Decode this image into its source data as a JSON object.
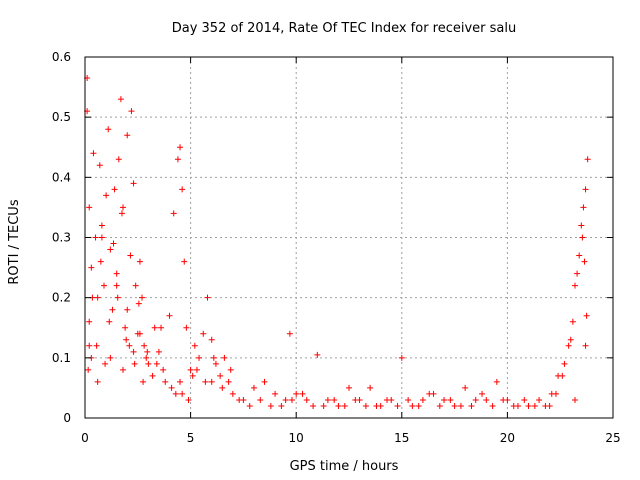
{
  "chart_data": {
    "type": "scatter",
    "title": "Day 352 of 2014, Rate Of TEC Index for receiver salu",
    "xlabel": "GPS time / hours",
    "ylabel": "ROTI / TECUs",
    "xlim": [
      0,
      25
    ],
    "ylim": [
      0,
      0.6
    ],
    "xticks": [
      0,
      5,
      10,
      15,
      20,
      25
    ],
    "yticks": [
      0,
      0.1,
      0.2,
      0.3,
      0.4,
      0.5,
      0.6
    ],
    "xtick_labels": [
      "0",
      "5",
      "10",
      "15",
      "20",
      "25"
    ],
    "ytick_labels": [
      "0",
      "0.1",
      "0.2",
      "0.3",
      "0.4",
      "0.5",
      "0.6"
    ],
    "grid": true,
    "marker": "+",
    "series_color": "#ff0000",
    "series": [
      {
        "name": "ROTI",
        "x": [
          0.1,
          0.1,
          0.2,
          0.2,
          0.3,
          0.4,
          0.5,
          0.6,
          0.7,
          0.8,
          0.9,
          1.0,
          1.1,
          1.2,
          1.3,
          1.4,
          1.5,
          1.6,
          1.7,
          1.8,
          1.9,
          2.0,
          2.1,
          2.2,
          2.3,
          2.4,
          2.5,
          2.6,
          2.7,
          2.8,
          2.9,
          3.0,
          3.2,
          3.4,
          3.6,
          3.8,
          4.0,
          4.2,
          4.4,
          4.5,
          4.6,
          4.7,
          4.8,
          5.0,
          5.2,
          5.4,
          5.6,
          5.8,
          6.0,
          6.2,
          6.4,
          6.6,
          6.8,
          7.0,
          7.5,
          8.0,
          8.5,
          9.0,
          9.5,
          9.7,
          10.0,
          10.5,
          11.0,
          11.5,
          12.0,
          12.5,
          13.0,
          13.5,
          14.0,
          14.5,
          15.0,
          15.5,
          16.0,
          16.5,
          17.0,
          17.5,
          18.0,
          18.5,
          19.0,
          19.5,
          20.0,
          20.5,
          21.0,
          21.5,
          22.0,
          22.3,
          22.6,
          22.9,
          23.1,
          23.3,
          23.5,
          23.6,
          23.7,
          23.8,
          0.2,
          0.6,
          1.2,
          1.8,
          2.3,
          4.5,
          4.6,
          23.7,
          0.3,
          0.8,
          1.5,
          2.0,
          2.6,
          3.5,
          5.1,
          6.0,
          23.2,
          0.15,
          0.35,
          0.55,
          0.75,
          0.95,
          1.15,
          1.35,
          1.55,
          1.75,
          1.95,
          2.15,
          2.35,
          2.55,
          2.75,
          2.95,
          3.3,
          3.7,
          4.1,
          4.3,
          4.9,
          5.3,
          5.7,
          6.1,
          6.5,
          6.9,
          7.3,
          7.8,
          8.3,
          8.8,
          9.3,
          9.8,
          10.3,
          10.8,
          11.3,
          11.8,
          12.3,
          12.8,
          13.3,
          13.8,
          14.3,
          14.8,
          15.3,
          15.8,
          16.3,
          16.8,
          17.3,
          17.8,
          18.3,
          18.8,
          19.3,
          19.8,
          20.3,
          20.8,
          21.3,
          21.8,
          22.1,
          22.4,
          22.7,
          23.0,
          23.2,
          23.4,
          23.55,
          23.65,
          23.75
        ],
        "y": [
          0.565,
          0.51,
          0.35,
          0.12,
          0.25,
          0.44,
          0.3,
          0.2,
          0.42,
          0.32,
          0.22,
          0.37,
          0.48,
          0.28,
          0.18,
          0.38,
          0.24,
          0.43,
          0.53,
          0.35,
          0.15,
          0.47,
          0.12,
          0.51,
          0.39,
          0.22,
          0.14,
          0.26,
          0.2,
          0.12,
          0.1,
          0.09,
          0.07,
          0.09,
          0.15,
          0.06,
          0.17,
          0.34,
          0.43,
          0.45,
          0.38,
          0.26,
          0.15,
          0.08,
          0.12,
          0.1,
          0.14,
          0.2,
          0.13,
          0.09,
          0.07,
          0.1,
          0.06,
          0.04,
          0.03,
          0.05,
          0.06,
          0.04,
          0.03,
          0.14,
          0.04,
          0.03,
          0.105,
          0.03,
          0.02,
          0.05,
          0.03,
          0.05,
          0.02,
          0.03,
          0.1,
          0.02,
          0.03,
          0.04,
          0.03,
          0.02,
          0.05,
          0.03,
          0.03,
          0.06,
          0.03,
          0.02,
          0.02,
          0.03,
          0.02,
          0.04,
          0.07,
          0.12,
          0.16,
          0.24,
          0.32,
          0.35,
          0.38,
          0.43,
          0.16,
          0.06,
          0.1,
          0.08,
          0.11,
          0.06,
          0.04,
          0.12,
          0.1,
          0.3,
          0.22,
          0.18,
          0.14,
          0.11,
          0.07,
          0.06,
          0.03,
          0.08,
          0.2,
          0.12,
          0.26,
          0.09,
          0.16,
          0.29,
          0.2,
          0.34,
          0.13,
          0.27,
          0.09,
          0.19,
          0.06,
          0.11,
          0.15,
          0.08,
          0.05,
          0.04,
          0.03,
          0.08,
          0.06,
          0.1,
          0.05,
          0.08,
          0.03,
          0.02,
          0.03,
          0.02,
          0.02,
          0.03,
          0.04,
          0.02,
          0.02,
          0.03,
          0.02,
          0.03,
          0.02,
          0.02,
          0.03,
          0.02,
          0.03,
          0.02,
          0.04,
          0.02,
          0.03,
          0.02,
          0.02,
          0.04,
          0.02,
          0.03,
          0.02,
          0.03,
          0.02,
          0.02,
          0.04,
          0.07,
          0.09,
          0.13,
          0.22,
          0.27,
          0.3,
          0.26,
          0.17
        ]
      }
    ]
  }
}
